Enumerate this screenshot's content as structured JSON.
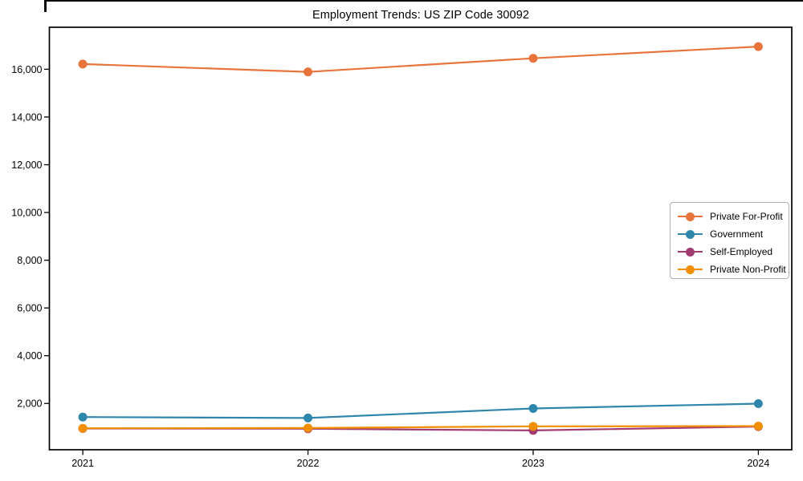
{
  "chart_data": {
    "type": "line",
    "title": "Employment Trends: US ZIP Code 30092",
    "xlabel": "",
    "ylabel": "",
    "categories": [
      "2021",
      "2022",
      "2023",
      "2024"
    ],
    "series": [
      {
        "name": "Private For-Profit",
        "color": "#E8743B",
        "values": [
          16220,
          15890,
          16460,
          16950
        ]
      },
      {
        "name": "Government",
        "color": "#2E86AB",
        "values": [
          1430,
          1390,
          1790,
          1990
        ]
      },
      {
        "name": "Self-Employed",
        "color": "#A23B72",
        "values": [
          950,
          940,
          870,
          1030
        ]
      },
      {
        "name": "Private Non-Profit",
        "color": "#F18F01",
        "values": [
          960,
          970,
          1040,
          1050
        ]
      }
    ],
    "ylim": [
      60,
      17760
    ],
    "yticks": [
      2000,
      4000,
      6000,
      8000,
      10000,
      12000,
      14000,
      16000
    ],
    "ytick_labels": [
      "2,000",
      "4,000",
      "6,000",
      "8,000",
      "10,000",
      "12,000",
      "14,000",
      "16,000"
    ],
    "grid": false,
    "legend_position": "center-right",
    "frame_color": "#000000",
    "background_color": "#ffffff"
  }
}
